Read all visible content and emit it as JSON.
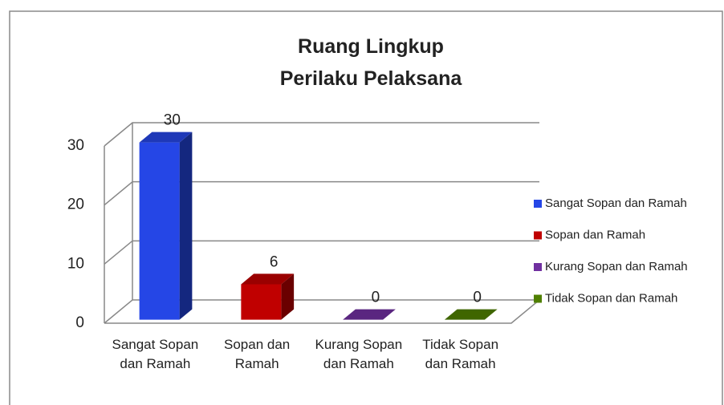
{
  "chart_data": {
    "type": "bar3d",
    "title": "Ruang Lingkup Perilaku Pelaksana",
    "categories": [
      "Sangat Sopan dan Ramah",
      "Sopan dan Ramah",
      "Kurang Sopan dan Ramah",
      "Tidak Sopan dan Ramah"
    ],
    "values": [
      30,
      6,
      0,
      0
    ],
    "colors": [
      "#2546e6",
      "#c00000",
      "#7030a0",
      "#4f7f00"
    ],
    "ylim": [
      0,
      30
    ],
    "yticks": [
      0,
      10,
      20,
      30
    ],
    "grid": true,
    "legend": "right"
  }
}
